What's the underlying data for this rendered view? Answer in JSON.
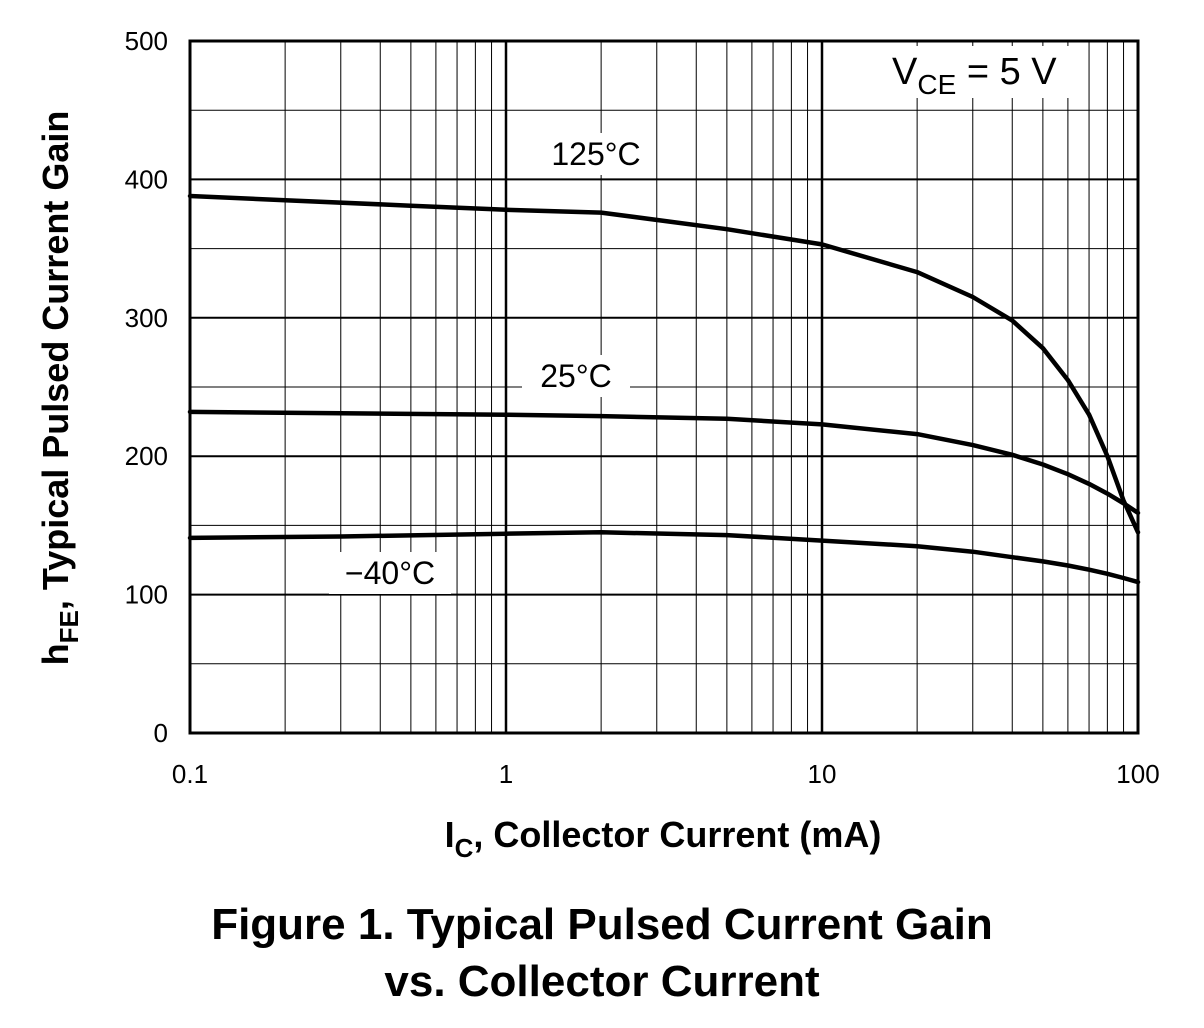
{
  "chart_data": {
    "type": "line",
    "x_scale": "log",
    "xlim": [
      0.1,
      100
    ],
    "ylim": [
      0,
      500
    ],
    "x_ticks": [
      0.1,
      1,
      10,
      100
    ],
    "x_tick_labels": [
      "0.1",
      "1",
      "10",
      "100"
    ],
    "y_ticks": [
      0,
      100,
      200,
      300,
      400,
      500
    ],
    "y_tick_labels": [
      "0",
      "100",
      "200",
      "300",
      "400",
      "500"
    ],
    "grid": true,
    "xlabel": {
      "main": "I",
      "sub": "C",
      "rest": ", Collector Current (mA)"
    },
    "ylabel": {
      "main": "h",
      "sub": "FE",
      "rest": ", Typical Pulsed Current Gain"
    },
    "condition": {
      "main": "V",
      "sub": "CE",
      "rest": " = 5 V"
    },
    "series": [
      {
        "name": "125°C",
        "x": [
          0.1,
          0.2,
          0.5,
          1,
          2,
          5,
          10,
          20,
          30,
          40,
          50,
          60,
          70,
          80,
          90,
          100
        ],
        "y": [
          388,
          385,
          381,
          378,
          376,
          364,
          353,
          333,
          315,
          298,
          278,
          255,
          230,
          200,
          168,
          145
        ]
      },
      {
        "name": "25°C",
        "x": [
          0.1,
          0.3,
          1,
          2,
          5,
          10,
          20,
          30,
          40,
          50,
          60,
          70,
          80,
          90,
          100
        ],
        "y": [
          232,
          231,
          230,
          229,
          227,
          223,
          216,
          208,
          201,
          194,
          187,
          180,
          173,
          166,
          159
        ]
      },
      {
        "name": "−40°C",
        "x": [
          0.1,
          0.3,
          1,
          2,
          5,
          10,
          20,
          30,
          40,
          50,
          60,
          70,
          80,
          90,
          100
        ],
        "y": [
          141,
          142,
          144,
          145,
          143,
          139,
          135,
          131,
          127,
          124,
          121,
          118,
          115,
          112,
          109
        ]
      }
    ]
  },
  "caption": {
    "line1": "Figure 1. Typical Pulsed Current Gain",
    "line2": "vs. Collector Current"
  }
}
